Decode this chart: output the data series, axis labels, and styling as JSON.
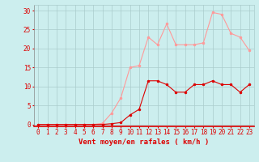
{
  "x": [
    0,
    1,
    2,
    3,
    4,
    5,
    6,
    7,
    8,
    9,
    10,
    11,
    12,
    13,
    14,
    15,
    16,
    17,
    18,
    19,
    20,
    21,
    22,
    23
  ],
  "vent_moyen": [
    0,
    0,
    0,
    0,
    0,
    0,
    0,
    0,
    0.2,
    0.5,
    2.5,
    4.0,
    11.5,
    11.5,
    10.5,
    8.5,
    8.5,
    10.5,
    10.5,
    11.5,
    10.5,
    10.5,
    8.5,
    10.5
  ],
  "rafales": [
    0,
    0,
    0,
    0,
    0,
    0,
    0,
    0.3,
    3.0,
    7.0,
    15.0,
    15.5,
    23.0,
    21.0,
    26.5,
    21.0,
    21.0,
    21.0,
    21.5,
    29.5,
    29.0,
    24.0,
    23.0,
    19.5
  ],
  "color_moyen": "#dd0000",
  "color_rafales": "#ff9999",
  "bg_color": "#cceeee",
  "grid_color": "#aacccc",
  "xlabel": "Vent moyen/en rafales ( km/h )",
  "yticks": [
    0,
    5,
    10,
    15,
    20,
    25,
    30
  ],
  "xlim": [
    -0.5,
    23.5
  ],
  "ylim": [
    -0.5,
    31.5
  ],
  "xlabel_fontsize": 6.5,
  "tick_fontsize": 5.5,
  "linewidth": 0.8,
  "markersize": 2.0
}
